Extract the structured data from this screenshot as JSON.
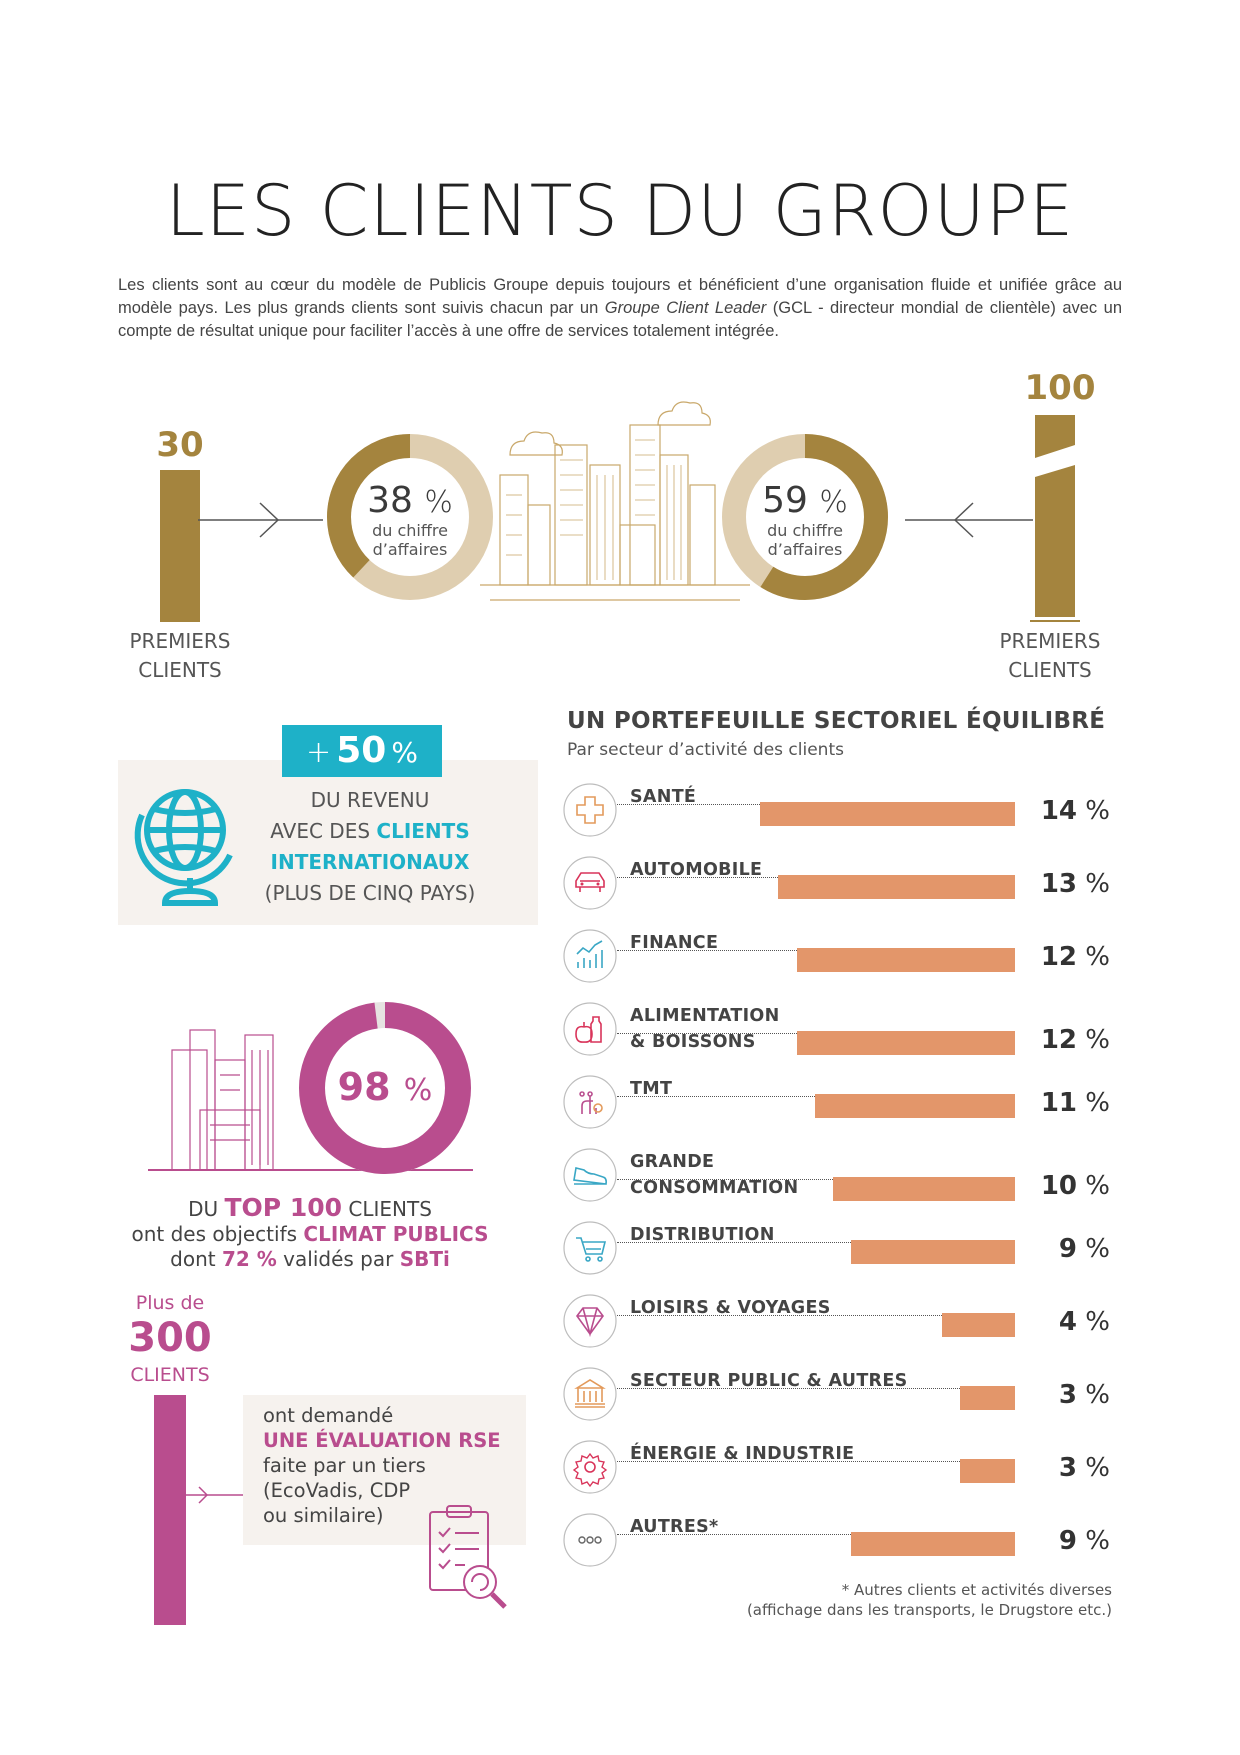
{
  "title": "LES CLIENTS DU GROUPE",
  "intro": {
    "part1": "Les clients sont au cœur du modèle de Publicis Groupe depuis toujours et bénéficient d’une organisation fluide et unifiée grâce au modèle pays. Les plus grands clients sont suivis chacun par un ",
    "italic": "Groupe Client Leader",
    "part2": " (GCL - directeur mondial de clientèle) avec un compte de résultat unique pour faciliter l’accès à une offre de services totalement intégrée."
  },
  "colors": {
    "gold": "#a4843e",
    "gold_light": "#dfceb0",
    "magenta": "#b94d8e",
    "cyan": "#1eb1c8",
    "bar": "#e3966a"
  },
  "top_clients": {
    "left": {
      "number": "30",
      "caps1": "PREMIERS",
      "caps2": "CLIENTS",
      "pct": "38",
      "pct_unit": "%",
      "sub1": "du chiffre",
      "sub2": "d’affaires",
      "value": 38
    },
    "right": {
      "number": "100",
      "caps1": "PREMIERS",
      "caps2": "CLIENTS",
      "pct": "59",
      "pct_unit": "%",
      "sub1": "du chiffre",
      "sub2": "d’affaires",
      "value": 59
    }
  },
  "international": {
    "badge_plus": "+",
    "badge_num": "50",
    "badge_unit": "%",
    "line1": "DU REVENU",
    "line2a": "AVEC DES ",
    "line2b": "CLIENTS",
    "line3": "INTERNATIONAUX",
    "line4": "(PLUS DE CINQ PAYS)",
    "icon": "globe-icon"
  },
  "climate": {
    "pct": "98",
    "unit": "%",
    "value": 98,
    "l1a": "DU ",
    "l1b": "TOP 100",
    "l1c": " CLIENTS",
    "l2a": "ont des objectifs ",
    "l2b": "CLIMAT PUBLICS",
    "l3a": "dont ",
    "l3b": "72 %",
    "l3c": " validés par ",
    "l3d": "SBTi"
  },
  "rse": {
    "plus": "Plus de",
    "number": "300",
    "clients": "CLIENTS",
    "t1": "ont demandé",
    "t2": "UNE ÉVALUATION RSE",
    "t3": "faite par un tiers",
    "t4": "(EcoVadis, CDP",
    "t5": "ou similaire)",
    "icon": "clipboard-checklist-icon"
  },
  "chart_data": {
    "type": "bar",
    "title": "UN PORTEFEUILLE SECTORIEL ÉQUILIBRÉ",
    "subtitle": "Par secteur d’activité des clients",
    "unit": "%",
    "categories": [
      {
        "l1": "SANTÉ",
        "l2": "",
        "icon": "health-cross-icon"
      },
      {
        "l1": "AUTOMOBILE",
        "l2": "",
        "icon": "car-icon"
      },
      {
        "l1": "FINANCE",
        "l2": "",
        "icon": "growth-chart-icon"
      },
      {
        "l1": "ALIMENTATION",
        "l2": "& BOISSONS",
        "icon": "apple-bottle-icon"
      },
      {
        "l1": "TMT",
        "l2": "",
        "icon": "network-icon"
      },
      {
        "l1": "GRANDE",
        "l2": "CONSOMMATION",
        "icon": "shoe-icon"
      },
      {
        "l1": "DISTRIBUTION",
        "l2": "",
        "icon": "cart-icon"
      },
      {
        "l1": "LOISIRS & VOYAGES",
        "l2": "",
        "icon": "diamond-icon"
      },
      {
        "l1": "SECTEUR PUBLIC & AUTRES",
        "l2": "",
        "icon": "government-building-icon"
      },
      {
        "l1": "ÉNERGIE & INDUSTRIE",
        "l2": "",
        "icon": "gear-icon"
      },
      {
        "l1": "AUTRES*",
        "l2": "",
        "icon": "ellipsis-icon"
      }
    ],
    "values": [
      14,
      13,
      12,
      12,
      11,
      10,
      9,
      4,
      3,
      3,
      9
    ],
    "note1": "* Autres clients et activités diverses",
    "note2": "(affichage dans les transports, le Drugstore etc.)"
  }
}
